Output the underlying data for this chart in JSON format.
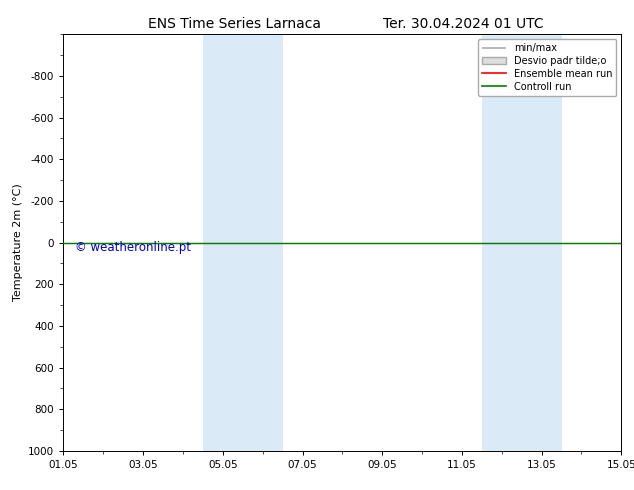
{
  "title_left": "ENS Time Series Larnaca",
  "title_right": "Ter. 30.04.2024 01 UTC",
  "ylabel": "Temperature 2m (°C)",
  "xlabel": "",
  "ylim": [
    -1000,
    1000
  ],
  "yticks": [
    -800,
    -600,
    -400,
    -200,
    0,
    200,
    400,
    600,
    800,
    1000
  ],
  "xtick_labels": [
    "01.05",
    "03.05",
    "05.05",
    "07.05",
    "09.05",
    "11.05",
    "13.05",
    "15.05"
  ],
  "xtick_positions": [
    0,
    2,
    4,
    6,
    8,
    10,
    12,
    14
  ],
  "shaded_regions": [
    {
      "start": 3.5,
      "end": 5.5,
      "color": "#daeaf7"
    },
    {
      "start": 10.5,
      "end": 12.5,
      "color": "#daeaf7"
    }
  ],
  "control_run_y": 0,
  "ensemble_mean_y": 0,
  "watermark": "© weatheronline.pt",
  "watermark_color": "#0000cc",
  "legend_labels": [
    "min/max",
    "Desvio padr tilde;o",
    "Ensemble mean run",
    "Controll run"
  ],
  "legend_colors": [
    "#aaaaaa",
    "#cccccc",
    "#ff0000",
    "#008000"
  ],
  "background_color": "#ffffff",
  "plot_bg_color": "#ffffff",
  "border_color": "#000000",
  "font_size_title": 10,
  "font_size_axis": 8,
  "font_size_ticks": 7.5,
  "font_size_watermark": 8.5
}
